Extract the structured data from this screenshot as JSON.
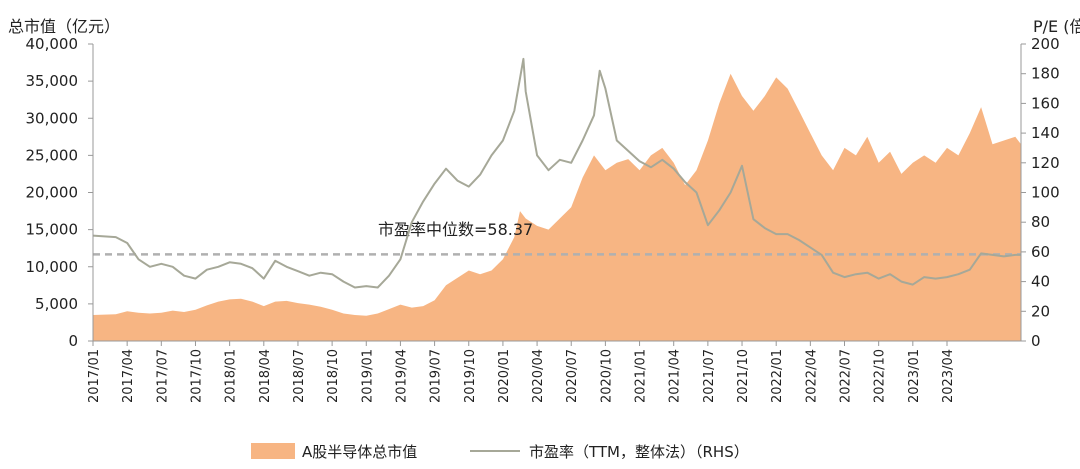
{
  "chart_data": {
    "type": "area+line",
    "title": "",
    "left_axis_title": "总市值（亿元）",
    "right_axis_title": "P/E (倍)",
    "left_ylim": [
      0,
      40000
    ],
    "left_ticks": [
      "0",
      "5,000",
      "10,000",
      "15,000",
      "20,000",
      "25,000",
      "30,000",
      "35,000",
      "40,000"
    ],
    "right_ylim": [
      0,
      200
    ],
    "right_ticks": [
      "0",
      "20",
      "40",
      "60",
      "80",
      "100",
      "120",
      "140",
      "160",
      "180",
      "200"
    ],
    "x_start": "2017/01",
    "x_end": "2023/06",
    "x_ticks": [
      "2017/01",
      "2017/04",
      "2017/07",
      "2017/10",
      "2018/01",
      "2018/04",
      "2018/07",
      "2018/10",
      "2019/01",
      "2019/04",
      "2019/07",
      "2019/10",
      "2020/01",
      "2020/04",
      "2020/07",
      "2020/10",
      "2021/01",
      "2021/04",
      "2021/07",
      "2021/10",
      "2022/01",
      "2022/04",
      "2022/07",
      "2022/10",
      "2023/01",
      "2023/04"
    ],
    "median_pe": 58.37,
    "median_label": "市盈率中位数=58.37",
    "series": [
      {
        "name": "A股半导体总市值",
        "axis": "left",
        "kind": "area",
        "color": "#f7b583",
        "points": [
          [
            0,
            3500
          ],
          [
            2,
            3600
          ],
          [
            3,
            4000
          ],
          [
            4,
            3800
          ],
          [
            5,
            3700
          ],
          [
            6,
            3800
          ],
          [
            7,
            4100
          ],
          [
            8,
            3900
          ],
          [
            9,
            4200
          ],
          [
            10,
            4800
          ],
          [
            11,
            5300
          ],
          [
            12,
            5600
          ],
          [
            13,
            5700
          ],
          [
            14,
            5300
          ],
          [
            15,
            4700
          ],
          [
            16,
            5300
          ],
          [
            17,
            5400
          ],
          [
            18,
            5100
          ],
          [
            19,
            4900
          ],
          [
            20,
            4600
          ],
          [
            21,
            4200
          ],
          [
            22,
            3700
          ],
          [
            23,
            3500
          ],
          [
            24,
            3400
          ],
          [
            25,
            3700
          ],
          [
            26,
            4300
          ],
          [
            27,
            4900
          ],
          [
            28,
            4500
          ],
          [
            29,
            4700
          ],
          [
            30,
            5500
          ],
          [
            31,
            7500
          ],
          [
            32,
            8500
          ],
          [
            33,
            9500
          ],
          [
            34,
            9000
          ],
          [
            35,
            9500
          ],
          [
            36,
            11000
          ],
          [
            37,
            14000
          ],
          [
            37.5,
            17500
          ],
          [
            38,
            16500
          ],
          [
            39,
            15500
          ],
          [
            40,
            15000
          ],
          [
            41,
            16500
          ],
          [
            42,
            18000
          ],
          [
            43,
            22000
          ],
          [
            44,
            25000
          ],
          [
            45,
            23000
          ],
          [
            46,
            24000
          ],
          [
            47,
            24500
          ],
          [
            48,
            23000
          ],
          [
            49,
            25000
          ],
          [
            50,
            26000
          ],
          [
            51,
            24000
          ],
          [
            52,
            21000
          ],
          [
            53,
            23000
          ],
          [
            54,
            27000
          ],
          [
            55,
            32000
          ],
          [
            56,
            36000
          ],
          [
            57,
            33000
          ],
          [
            58,
            31000
          ],
          [
            59,
            33000
          ],
          [
            60,
            35500
          ],
          [
            61,
            34000
          ],
          [
            62,
            31000
          ],
          [
            63,
            28000
          ],
          [
            64,
            25000
          ],
          [
            65,
            23000
          ],
          [
            66,
            26000
          ],
          [
            67,
            25000
          ],
          [
            68,
            27500
          ],
          [
            69,
            24000
          ],
          [
            70,
            25500
          ],
          [
            71,
            22500
          ],
          [
            72,
            24000
          ],
          [
            73,
            25000
          ],
          [
            74,
            24000
          ],
          [
            75,
            26000
          ],
          [
            76,
            25000
          ],
          [
            77,
            28000
          ],
          [
            78,
            31500
          ],
          [
            79,
            26500
          ],
          [
            80,
            27000
          ],
          [
            81,
            27500
          ],
          [
            81.5,
            26500
          ]
        ]
      },
      {
        "name": "市盈率（TTM，整体法）（RHS）",
        "axis": "right",
        "kind": "line",
        "color": "#a6a898",
        "points": [
          [
            0,
            71
          ],
          [
            2,
            70
          ],
          [
            3,
            66
          ],
          [
            4,
            55
          ],
          [
            5,
            50
          ],
          [
            6,
            52
          ],
          [
            7,
            50
          ],
          [
            8,
            44
          ],
          [
            9,
            42
          ],
          [
            10,
            48
          ],
          [
            11,
            50
          ],
          [
            12,
            53
          ],
          [
            13,
            52
          ],
          [
            14,
            49
          ],
          [
            15,
            42
          ],
          [
            16,
            54
          ],
          [
            17,
            50
          ],
          [
            18,
            47
          ],
          [
            19,
            44
          ],
          [
            20,
            46
          ],
          [
            21,
            45
          ],
          [
            22,
            40
          ],
          [
            23,
            36
          ],
          [
            24,
            37
          ],
          [
            25,
            36
          ],
          [
            26,
            44
          ],
          [
            27,
            55
          ],
          [
            28,
            80
          ],
          [
            29,
            94
          ],
          [
            30,
            106
          ],
          [
            31,
            116
          ],
          [
            32,
            108
          ],
          [
            33,
            104
          ],
          [
            34,
            112
          ],
          [
            35,
            125
          ],
          [
            36,
            135
          ],
          [
            37,
            155
          ],
          [
            37.8,
            190
          ],
          [
            38,
            168
          ],
          [
            39,
            125
          ],
          [
            40,
            115
          ],
          [
            41,
            122
          ],
          [
            42,
            120
          ],
          [
            43,
            135
          ],
          [
            44,
            152
          ],
          [
            44.5,
            182
          ],
          [
            45,
            170
          ],
          [
            46,
            135
          ],
          [
            47,
            128
          ],
          [
            48,
            121
          ],
          [
            49,
            117
          ],
          [
            50,
            122
          ],
          [
            51,
            116
          ],
          [
            52,
            107
          ],
          [
            53,
            100
          ],
          [
            54,
            78
          ],
          [
            55,
            88
          ],
          [
            56,
            100
          ],
          [
            57,
            118
          ],
          [
            58,
            82
          ],
          [
            59,
            76
          ],
          [
            60,
            72
          ],
          [
            61,
            72
          ],
          [
            62,
            68
          ],
          [
            63,
            63
          ],
          [
            64,
            58
          ],
          [
            65,
            46
          ],
          [
            66,
            43
          ],
          [
            67,
            45
          ],
          [
            68,
            46
          ],
          [
            69,
            42
          ],
          [
            70,
            45
          ],
          [
            71,
            40
          ],
          [
            72,
            38
          ],
          [
            73,
            43
          ],
          [
            74,
            42
          ],
          [
            75,
            43
          ],
          [
            76,
            45
          ],
          [
            77,
            48
          ],
          [
            78,
            59
          ],
          [
            79,
            58
          ],
          [
            80,
            57
          ],
          [
            81,
            58
          ],
          [
            81.5,
            58
          ]
        ]
      }
    ],
    "legend": [
      "A股半导体总市值",
      "市盈率（TTM，整体法）（RHS）"
    ]
  }
}
